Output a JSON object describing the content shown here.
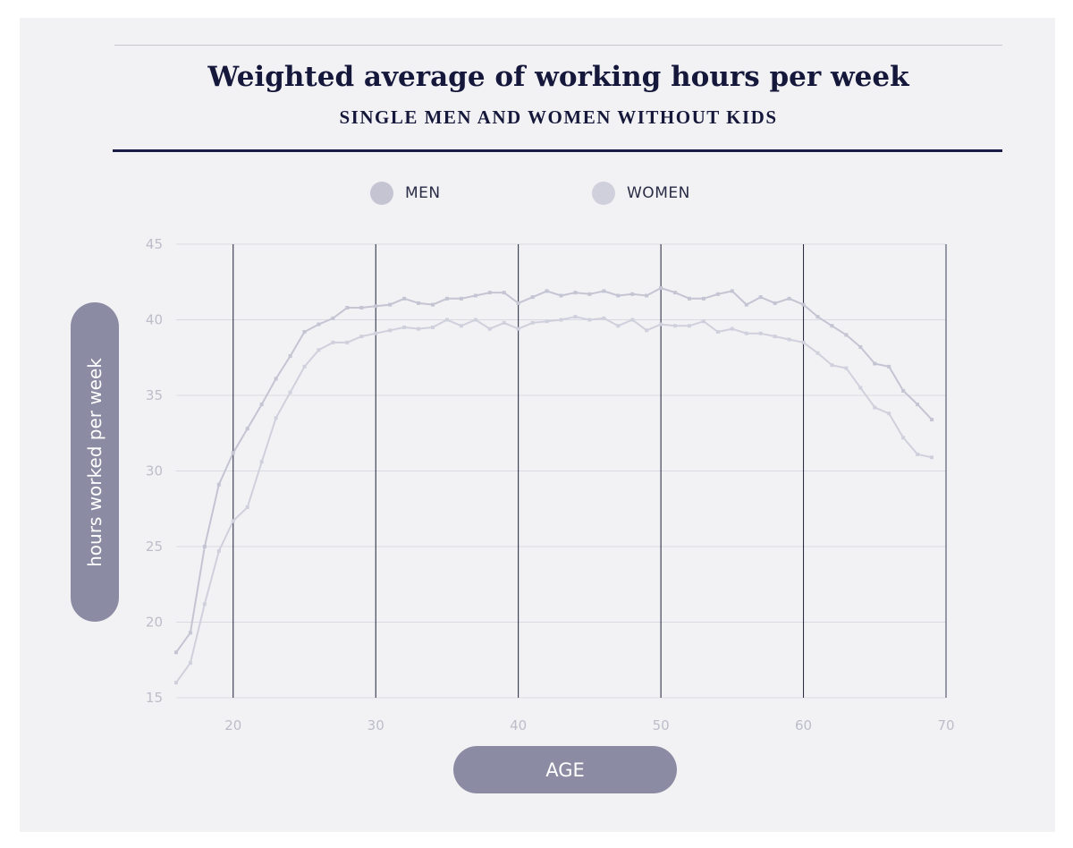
{
  "chart_data": {
    "type": "line",
    "title": "Weighted average of working hours per week",
    "subtitle": "SINGLE MEN AND WOMEN WITHOUT KIDS",
    "xlabel": "AGE",
    "ylabel": "hours worked per week",
    "xlim": [
      16,
      70
    ],
    "ylim": [
      15,
      45
    ],
    "x_ticks": [
      20,
      30,
      40,
      50,
      60,
      70
    ],
    "y_ticks": [
      15,
      20,
      25,
      30,
      35,
      40,
      45
    ],
    "grid": "horizontal light lines at every y tick; dark vertical lines at every x tick",
    "legend_position": "top-center",
    "x": [
      16,
      17,
      18,
      19,
      20,
      21,
      22,
      23,
      24,
      25,
      26,
      27,
      28,
      29,
      30,
      31,
      32,
      33,
      34,
      35,
      36,
      37,
      38,
      39,
      40,
      41,
      42,
      43,
      44,
      45,
      46,
      47,
      48,
      49,
      50,
      51,
      52,
      53,
      54,
      55,
      56,
      57,
      58,
      59,
      60,
      61,
      62,
      63,
      64,
      65,
      66,
      67,
      68,
      69
    ],
    "series": [
      {
        "name": "MEN",
        "color": "#c4c4d3",
        "values": [
          18.0,
          19.3,
          25.0,
          29.1,
          31.2,
          32.8,
          34.4,
          36.1,
          37.6,
          39.2,
          39.7,
          40.1,
          40.8,
          40.8,
          40.9,
          41.0,
          41.4,
          41.1,
          41.0,
          41.4,
          41.4,
          41.6,
          41.8,
          41.8,
          41.1,
          41.5,
          41.9,
          41.6,
          41.8,
          41.7,
          41.9,
          41.6,
          41.7,
          41.6,
          42.1,
          41.8,
          41.4,
          41.4,
          41.7,
          41.9,
          41.0,
          41.5,
          41.1,
          41.4,
          41.0,
          40.2,
          39.6,
          39.0,
          38.2,
          37.1,
          36.9,
          35.3,
          34.4,
          33.4
        ]
      },
      {
        "name": "WOMEN",
        "color": "#d0d0dd",
        "values": [
          16.0,
          17.3,
          21.2,
          24.7,
          26.7,
          27.6,
          30.6,
          33.5,
          35.2,
          36.9,
          38.0,
          38.5,
          38.5,
          38.9,
          39.1,
          39.3,
          39.5,
          39.4,
          39.5,
          40.0,
          39.6,
          40.0,
          39.4,
          39.8,
          39.4,
          39.8,
          39.9,
          40.0,
          40.2,
          40.0,
          40.1,
          39.6,
          40.0,
          39.3,
          39.7,
          39.6,
          39.6,
          39.9,
          39.2,
          39.4,
          39.1,
          39.1,
          38.9,
          38.7,
          38.5,
          37.8,
          37.0,
          36.8,
          35.5,
          34.2,
          33.8,
          32.2,
          31.1,
          30.9
        ]
      }
    ]
  },
  "legend": {
    "men": {
      "label": "MEN",
      "color": "#c4c4d3"
    },
    "women": {
      "label": "WOMEN",
      "color": "#d0d0dd"
    }
  }
}
